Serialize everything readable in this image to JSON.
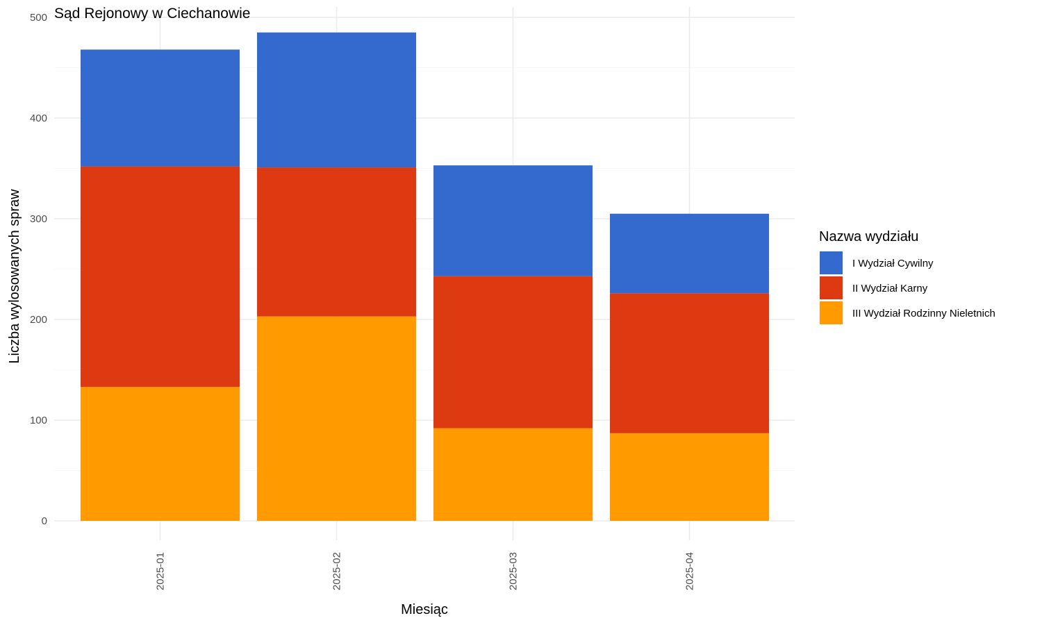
{
  "chart_data": {
    "type": "bar",
    "stacked": true,
    "title": "Sąd Rejonowy w Ciechanowie",
    "xlabel": "Miesiąc",
    "ylabel": "Liczba wylosowanych spraw",
    "ylim": [
      0,
      500
    ],
    "yticks": [
      0,
      100,
      200,
      300,
      400,
      500
    ],
    "grid": true,
    "legend_position": "right",
    "legend_title": "Nazwa wydziału",
    "categories": [
      "2025-01",
      "2025-02",
      "2025-03",
      "2025-04"
    ],
    "series": [
      {
        "name": "III Wydział Rodzinny Nieletnich",
        "color": "#FF9B00",
        "values": [
          133,
          203,
          92,
          87
        ]
      },
      {
        "name": "II Wydział Karny",
        "color": "#DE3A12",
        "values": [
          219,
          148,
          151,
          139
        ]
      },
      {
        "name": "I Wydział Cywilny",
        "color": "#3469CD",
        "values": [
          116,
          134,
          110,
          79
        ]
      }
    ],
    "legend_order": [
      "I Wydział Cywilny",
      "II Wydział Karny",
      "III Wydział Rodzinny Nieletnich"
    ]
  }
}
